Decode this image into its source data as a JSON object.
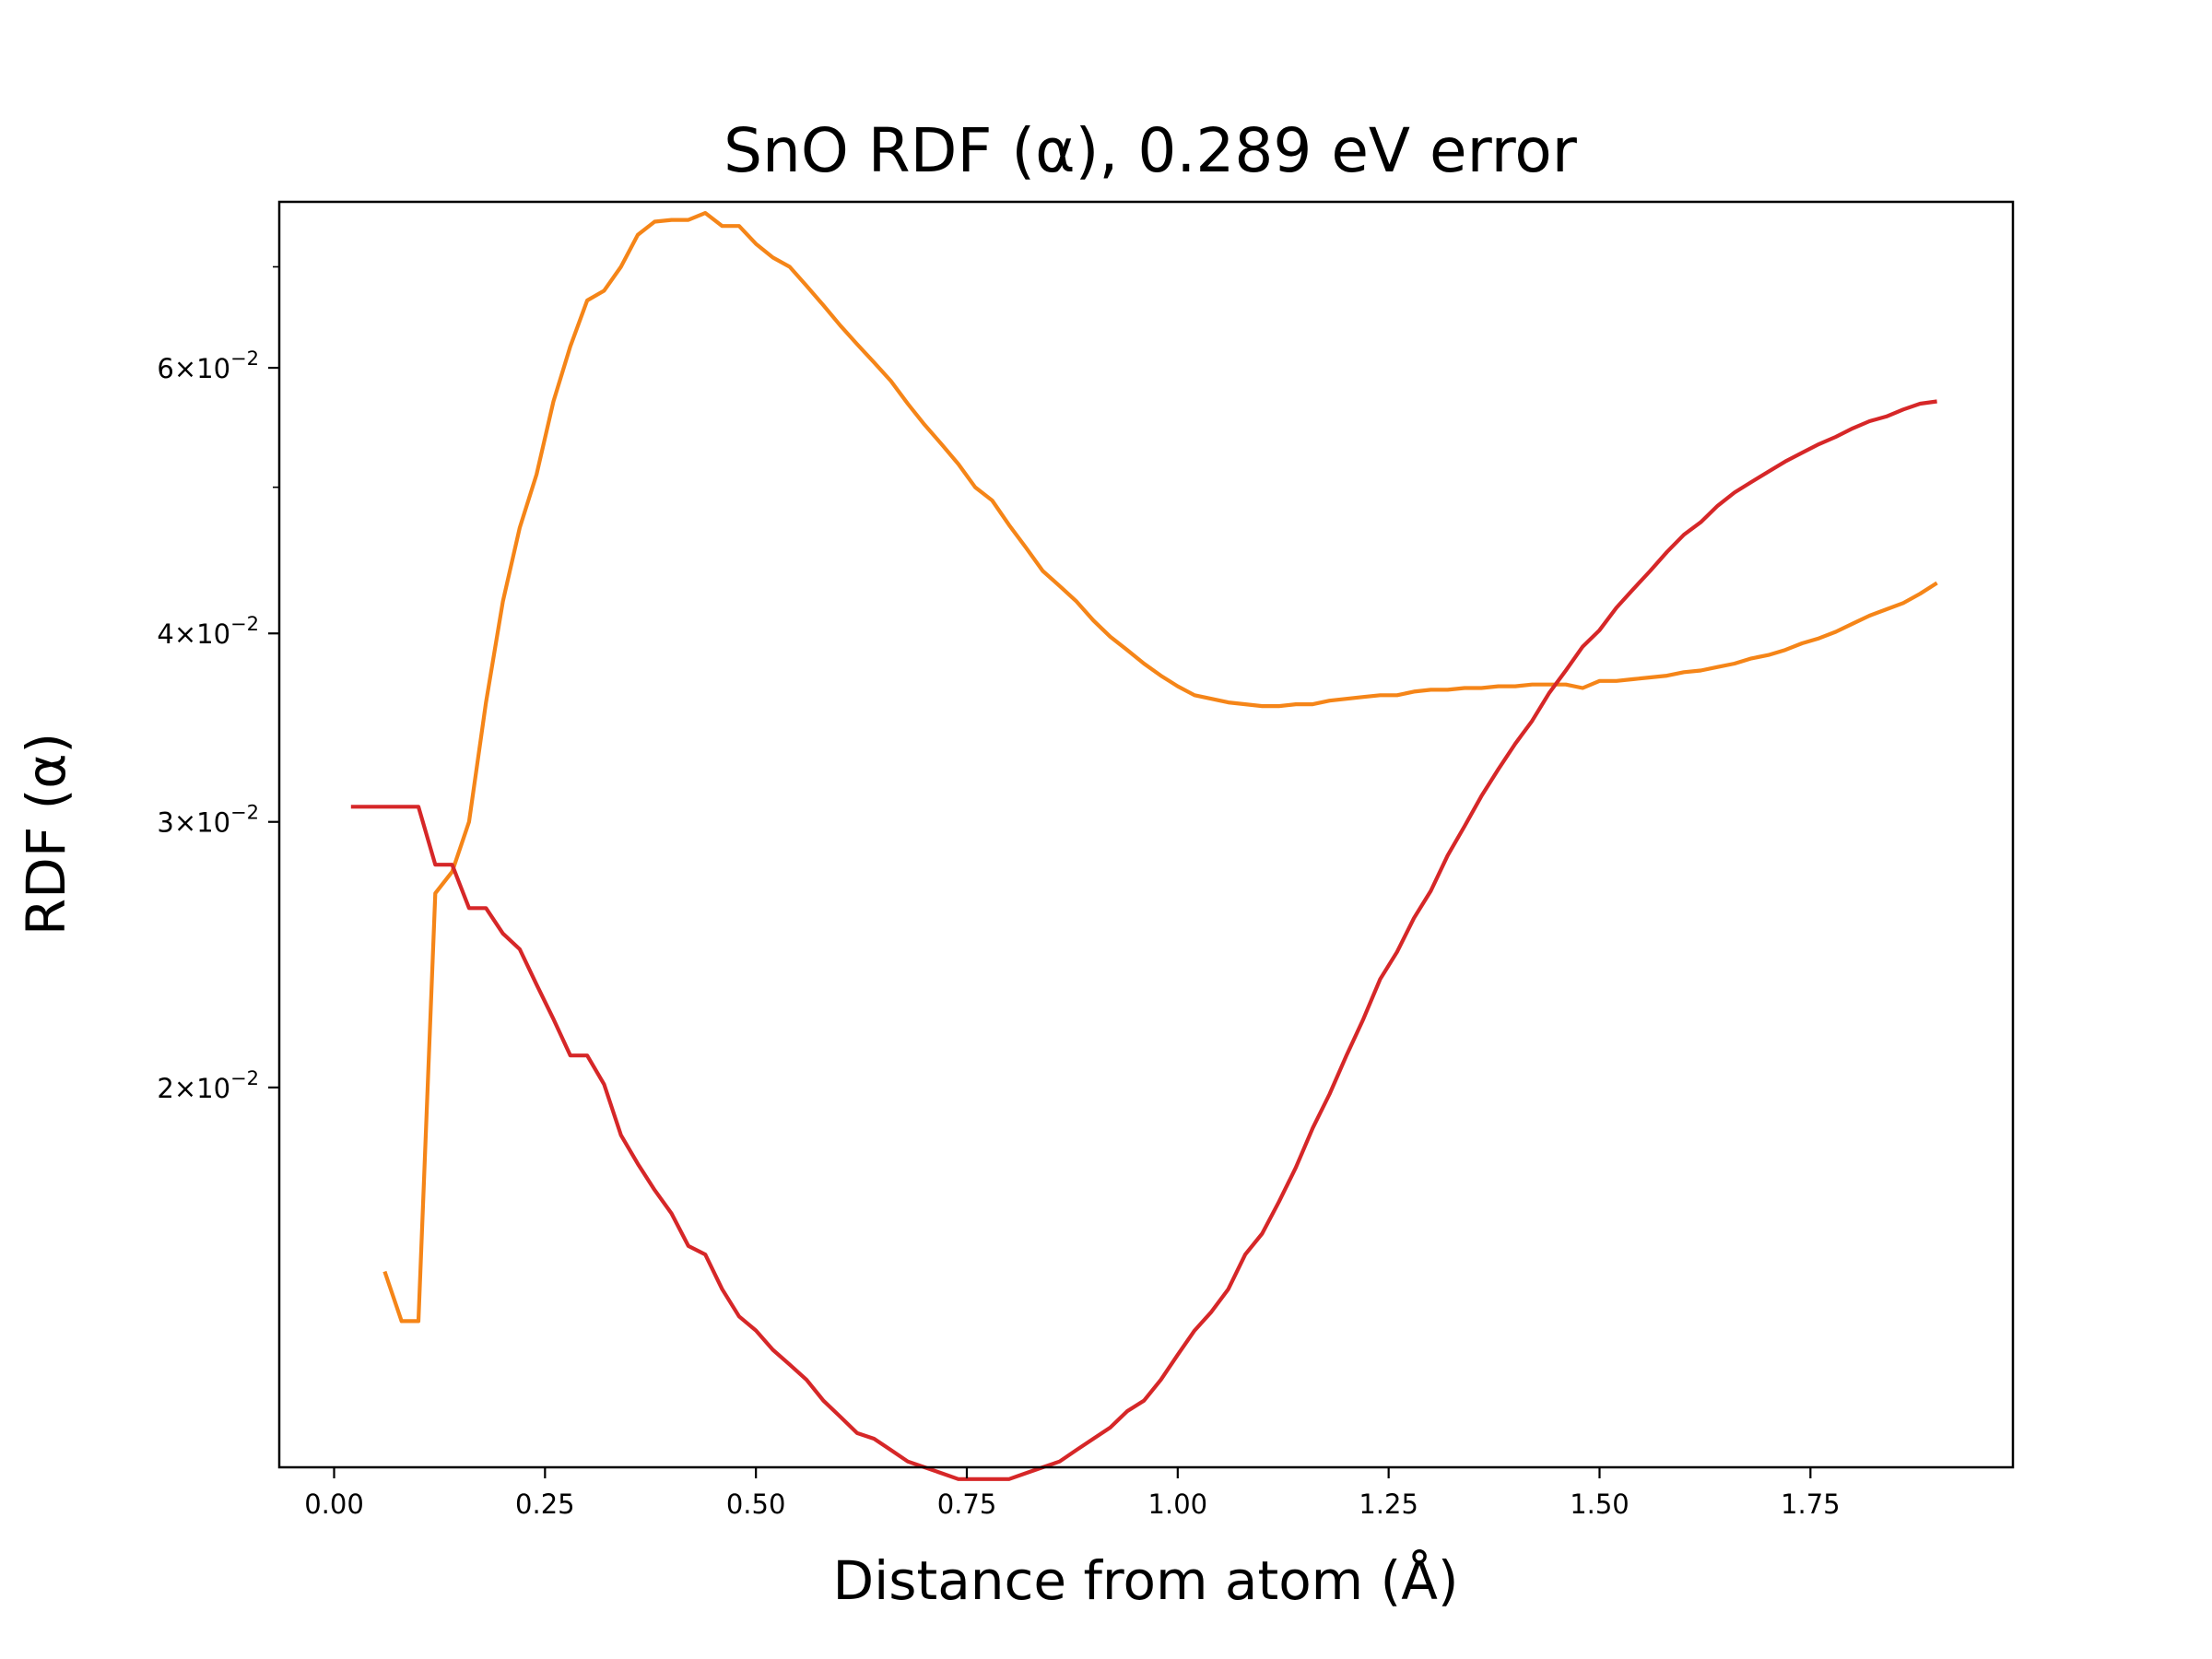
{
  "chart_data": {
    "type": "line",
    "title": "SnO RDF (α), 0.289 eV error",
    "xlabel": "Distance from atom (Å)",
    "ylabel": "RDF (α)",
    "xlim": [
      -0.065,
      1.99
    ],
    "ylim": [
      0.0112,
      0.0773
    ],
    "yscale": "log",
    "grid": false,
    "x_ticks": [
      {
        "value": 0.0,
        "label": "0.00"
      },
      {
        "value": 0.25,
        "label": "0.25"
      },
      {
        "value": 0.5,
        "label": "0.50"
      },
      {
        "value": 0.75,
        "label": "0.75"
      },
      {
        "value": 1.0,
        "label": "1.00"
      },
      {
        "value": 1.25,
        "label": "1.25"
      },
      {
        "value": 1.5,
        "label": "1.50"
      },
      {
        "value": 1.75,
        "label": "1.75"
      }
    ],
    "y_ticks": [
      {
        "value": 0.02,
        "mantissa": "2",
        "exp": "−2"
      },
      {
        "value": 0.03,
        "mantissa": "3",
        "exp": "−2"
      },
      {
        "value": 0.04,
        "mantissa": "4",
        "exp": "−2"
      },
      {
        "value": 0.06,
        "mantissa": "6",
        "exp": "−2"
      }
    ],
    "y_minor_ticks": [
      0.05,
      0.07
    ],
    "series": [
      {
        "color": "#f58518",
        "x": [
          0.06,
          0.08,
          0.1,
          0.12,
          0.14,
          0.16,
          0.18,
          0.2,
          0.22,
          0.24,
          0.26,
          0.28,
          0.3,
          0.32,
          0.34,
          0.36,
          0.38,
          0.4,
          0.42,
          0.44,
          0.46,
          0.48,
          0.5,
          0.52,
          0.54,
          0.56,
          0.58,
          0.6,
          0.62,
          0.64,
          0.66,
          0.68,
          0.7,
          0.72,
          0.74,
          0.76,
          0.78,
          0.8,
          0.82,
          0.84,
          0.86,
          0.88,
          0.9,
          0.92,
          0.94,
          0.96,
          0.98,
          1.0,
          1.02,
          1.04,
          1.06,
          1.08,
          1.1,
          1.12,
          1.14,
          1.16,
          1.18,
          1.2,
          1.22,
          1.24,
          1.26,
          1.28,
          1.3,
          1.32,
          1.34,
          1.36,
          1.38,
          1.4,
          1.42,
          1.44,
          1.46,
          1.48,
          1.5,
          1.52,
          1.54,
          1.56,
          1.58,
          1.6,
          1.62,
          1.64,
          1.66,
          1.68,
          1.7,
          1.72,
          1.74,
          1.76,
          1.78,
          1.8,
          1.82,
          1.84,
          1.86,
          1.88,
          1.9
        ],
        "values": [
          0.0151,
          0.014,
          0.014,
          0.0269,
          0.0278,
          0.03,
          0.036,
          0.042,
          0.047,
          0.051,
          0.057,
          0.062,
          0.0665,
          0.0675,
          0.07,
          0.0735,
          0.075,
          0.0752,
          0.0752,
          0.076,
          0.0745,
          0.0745,
          0.0725,
          0.071,
          0.07,
          0.068,
          0.066,
          0.064,
          0.0622,
          0.0605,
          0.0588,
          0.0568,
          0.055,
          0.0534,
          0.0518,
          0.05,
          0.049,
          0.0472,
          0.0456,
          0.044,
          0.043,
          0.042,
          0.0408,
          0.0398,
          0.039,
          0.0382,
          0.0375,
          0.0369,
          0.0364,
          0.0362,
          0.036,
          0.0359,
          0.0358,
          0.0358,
          0.0359,
          0.0359,
          0.0361,
          0.0362,
          0.0363,
          0.0364,
          0.0364,
          0.0366,
          0.0367,
          0.0367,
          0.0368,
          0.0368,
          0.0369,
          0.0369,
          0.037,
          0.037,
          0.037,
          0.0368,
          0.0372,
          0.0372,
          0.0373,
          0.0374,
          0.0375,
          0.0377,
          0.0378,
          0.038,
          0.0382,
          0.0385,
          0.0387,
          0.039,
          0.0394,
          0.0397,
          0.0401,
          0.0406,
          0.0411,
          0.0415,
          0.0419,
          0.0425,
          0.0432
        ]
      },
      {
        "color": "#d62728",
        "x": [
          0.02,
          0.04,
          0.06,
          0.08,
          0.1,
          0.12,
          0.14,
          0.16,
          0.18,
          0.2,
          0.22,
          0.24,
          0.26,
          0.28,
          0.3,
          0.32,
          0.34,
          0.36,
          0.38,
          0.4,
          0.42,
          0.44,
          0.46,
          0.48,
          0.5,
          0.52,
          0.54,
          0.56,
          0.58,
          0.6,
          0.62,
          0.64,
          0.66,
          0.68,
          0.7,
          0.72,
          0.74,
          0.76,
          0.78,
          0.8,
          0.82,
          0.84,
          0.86,
          0.88,
          0.9,
          0.92,
          0.94,
          0.96,
          0.98,
          1.0,
          1.02,
          1.04,
          1.06,
          1.08,
          1.1,
          1.12,
          1.14,
          1.16,
          1.18,
          1.2,
          1.22,
          1.24,
          1.26,
          1.28,
          1.3,
          1.32,
          1.34,
          1.36,
          1.38,
          1.4,
          1.42,
          1.44,
          1.46,
          1.48,
          1.5,
          1.52,
          1.54,
          1.56,
          1.58,
          1.6,
          1.62,
          1.64,
          1.66,
          1.68,
          1.7,
          1.72,
          1.74,
          1.76,
          1.78,
          1.8,
          1.82,
          1.84,
          1.86,
          1.88,
          1.9
        ],
        "values": [
          0.0307,
          0.0307,
          0.0307,
          0.0307,
          0.0307,
          0.0281,
          0.0281,
          0.0263,
          0.0263,
          0.0253,
          0.0247,
          0.0234,
          0.0222,
          0.021,
          0.021,
          0.0201,
          0.0186,
          0.0178,
          0.0171,
          0.0165,
          0.0157,
          0.0155,
          0.0147,
          0.0141,
          0.0138,
          0.0134,
          0.0131,
          0.0128,
          0.0124,
          0.0121,
          0.0118,
          0.0117,
          0.0115,
          0.0113,
          0.0112,
          0.0111,
          0.011,
          0.011,
          0.011,
          0.011,
          0.0111,
          0.0112,
          0.0113,
          0.0115,
          0.0117,
          0.0119,
          0.0122,
          0.0124,
          0.0128,
          0.0133,
          0.0138,
          0.0142,
          0.0147,
          0.0155,
          0.016,
          0.0168,
          0.0177,
          0.0188,
          0.0198,
          0.021,
          0.0222,
          0.0236,
          0.0246,
          0.0259,
          0.027,
          0.0285,
          0.0298,
          0.0312,
          0.0325,
          0.0338,
          0.035,
          0.0365,
          0.0378,
          0.0392,
          0.0402,
          0.0416,
          0.0428,
          0.044,
          0.0453,
          0.0465,
          0.0474,
          0.0486,
          0.0496,
          0.0504,
          0.0512,
          0.052,
          0.0527,
          0.0534,
          0.054,
          0.0547,
          0.0553,
          0.0557,
          0.0563,
          0.0568,
          0.057
        ]
      }
    ]
  }
}
